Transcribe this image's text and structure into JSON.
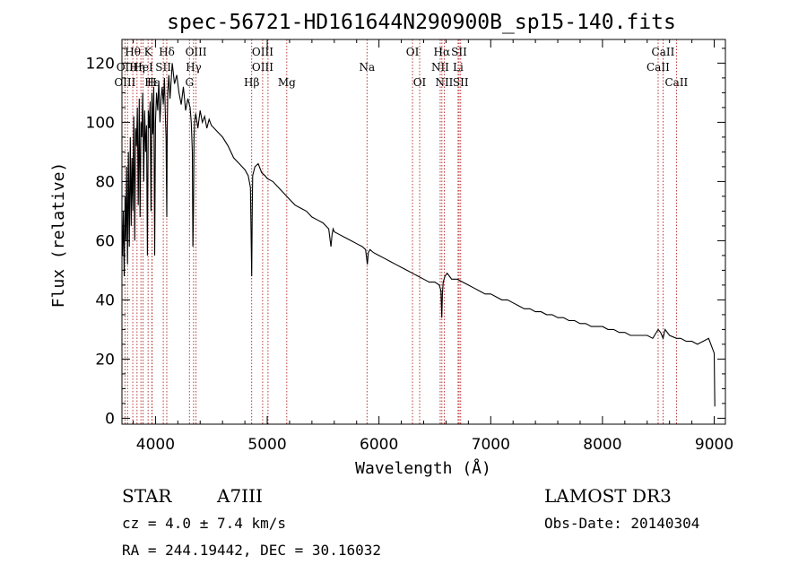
{
  "chart_data": {
    "type": "line",
    "title": "spec-56721-HD161644N290900B_sp15-140.fits",
    "xlabel": "Wavelength (Å)",
    "ylabel": "Flux (relative)",
    "xlim": [
      3700,
      9100
    ],
    "ylim": [
      -2,
      128
    ],
    "xticks": [
      4000,
      5000,
      6000,
      7000,
      8000,
      9000
    ],
    "yticks": [
      0,
      20,
      40,
      60,
      80,
      100,
      120
    ],
    "grid": false,
    "series": [
      {
        "name": "flux",
        "x": [
          3700,
          3705,
          3712,
          3720,
          3728,
          3735,
          3742,
          3750,
          3758,
          3766,
          3775,
          3783,
          3790,
          3798,
          3806,
          3815,
          3822,
          3830,
          3838,
          3846,
          3855,
          3862,
          3870,
          3878,
          3886,
          3895,
          3903,
          3912,
          3920,
          3928,
          3936,
          3945,
          3952,
          3960,
          3968,
          3976,
          3985,
          3993,
          4000,
          4010,
          4020,
          4030,
          4040,
          4050,
          4060,
          4070,
          4080,
          4090,
          4095,
          4101,
          4105,
          4110,
          4120,
          4130,
          4150,
          4170,
          4190,
          4210,
          4230,
          4250,
          4270,
          4290,
          4310,
          4320,
          4330,
          4335,
          4340,
          4345,
          4350,
          4360,
          4380,
          4400,
          4420,
          4440,
          4460,
          4480,
          4500,
          4550,
          4600,
          4650,
          4700,
          4750,
          4800,
          4830,
          4850,
          4855,
          4861,
          4866,
          4870,
          4890,
          4920,
          4950,
          4980,
          5000,
          5050,
          5100,
          5150,
          5200,
          5250,
          5300,
          5350,
          5400,
          5450,
          5500,
          5550,
          5570,
          5580,
          5590,
          5600,
          5650,
          5700,
          5750,
          5800,
          5850,
          5880,
          5890,
          5896,
          5905,
          5920,
          5950,
          6000,
          6050,
          6100,
          6150,
          6200,
          6250,
          6300,
          6350,
          6400,
          6450,
          6500,
          6540,
          6555,
          6562,
          6568,
          6575,
          6590,
          6610,
          6630,
          6650,
          6700,
          6750,
          6800,
          6850,
          6900,
          6950,
          7000,
          7050,
          7100,
          7150,
          7200,
          7250,
          7300,
          7350,
          7400,
          7450,
          7500,
          7550,
          7600,
          7650,
          7700,
          7750,
          7800,
          7850,
          7900,
          7950,
          8000,
          8050,
          8100,
          8150,
          8200,
          8250,
          8300,
          8350,
          8400,
          8450,
          8498,
          8520,
          8542,
          8560,
          8600,
          8662,
          8700,
          8750,
          8800,
          8850,
          8900,
          8950,
          8980,
          9000,
          9005
        ],
        "y": [
          62,
          55,
          70,
          48,
          75,
          60,
          85,
          52,
          90,
          58,
          95,
          65,
          88,
          70,
          102,
          60,
          98,
          92,
          105,
          72,
          108,
          68,
          100,
          95,
          110,
          80,
          104,
          90,
          99,
          55,
          104,
          98,
          107,
          70,
          110,
          96,
          112,
          55,
          100,
          110,
          104,
          114,
          100,
          108,
          112,
          106,
          115,
          100,
          95,
          68,
          98,
          110,
          116,
          108,
          120,
          113,
          116,
          110,
          106,
          112,
          104,
          108,
          105,
          100,
          90,
          58,
          70,
          95,
          100,
          103,
          98,
          104,
          100,
          102,
          98,
          101,
          99,
          97,
          95,
          92,
          88,
          86,
          84,
          82,
          78,
          65,
          48,
          70,
          82,
          85,
          86,
          83,
          82,
          81,
          80,
          78,
          76,
          74,
          72,
          71,
          70,
          68,
          67,
          66,
          64,
          58,
          62,
          64,
          63,
          62,
          61,
          60,
          59,
          58,
          57,
          54,
          52,
          56,
          57,
          56,
          55,
          54,
          53,
          52,
          51,
          50,
          49,
          48,
          47,
          46,
          46,
          45,
          43,
          34,
          42,
          46,
          48,
          49,
          48,
          47,
          47,
          46,
          45,
          44,
          43,
          42,
          42,
          41,
          40,
          40,
          39,
          38,
          37,
          37,
          36,
          36,
          35,
          35,
          34,
          34,
          33,
          33,
          32,
          32,
          31,
          31,
          31,
          30,
          30,
          29,
          29,
          28,
          28,
          28,
          28,
          27,
          30,
          29,
          27,
          30,
          28,
          27,
          27,
          26,
          26,
          25,
          26,
          27,
          24,
          22,
          4
        ]
      }
    ],
    "spectral_lines": [
      {
        "label": "Hθ",
        "x": 3797,
        "row": 1
      },
      {
        "label": "K",
        "x": 3934,
        "row": 1
      },
      {
        "label": "Hδ",
        "x": 4101,
        "row": 1
      },
      {
        "label": "OIII",
        "x": 4363,
        "row": 1
      },
      {
        "label": "OIII",
        "x": 4959,
        "row": 1
      },
      {
        "label": "OI",
        "x": 6300,
        "row": 1
      },
      {
        "label": "Hα",
        "x": 6563,
        "row": 1
      },
      {
        "label": "SII",
        "x": 6717,
        "row": 1
      },
      {
        "label": "CaII",
        "x": 8542,
        "row": 1
      },
      {
        "label": "OII",
        "x": 3727,
        "row": 2
      },
      {
        "label": "Hη",
        "x": 3835,
        "row": 2
      },
      {
        "label": "HeI",
        "x": 3889,
        "row": 2
      },
      {
        "label": "SII",
        "x": 4070,
        "row": 2
      },
      {
        "label": "Hγ",
        "x": 4341,
        "row": 2
      },
      {
        "label": "OIII",
        "x": 4959,
        "row": 2
      },
      {
        "label": "Na",
        "x": 5893,
        "row": 2
      },
      {
        "label": "NII",
        "x": 6548,
        "row": 2
      },
      {
        "label": "Li",
        "x": 6708,
        "row": 2
      },
      {
        "label": "CaII",
        "x": 8498,
        "row": 2
      },
      {
        "label": "OIII",
        "x": 3727,
        "row": 3
      },
      {
        "label": "Hε",
        "x": 3970,
        "row": 3
      },
      {
        "label": "H",
        "x": 3968,
        "row": 3
      },
      {
        "label": "G",
        "x": 4304,
        "row": 3
      },
      {
        "label": "Hβ",
        "x": 4861,
        "row": 3
      },
      {
        "label": "Mg",
        "x": 5175,
        "row": 3
      },
      {
        "label": "OI",
        "x": 6364,
        "row": 3
      },
      {
        "label": "NII",
        "x": 6584,
        "row": 3
      },
      {
        "label": "SII",
        "x": 6731,
        "row": 3
      },
      {
        "label": "CaII",
        "x": 8662,
        "row": 3
      }
    ],
    "line_markers_x": [
      3727,
      3750,
      3797,
      3835,
      3870,
      3889,
      3934,
      3968,
      3970,
      4070,
      4101,
      4304,
      4341,
      4363,
      4861,
      4959,
      5007,
      5175,
      5893,
      6300,
      6364,
      6548,
      6563,
      6584,
      6708,
      6717,
      6731,
      8498,
      8542,
      8662
    ]
  },
  "info": {
    "object_class": "STAR",
    "subclass": "A7III",
    "survey": "LAMOST DR3",
    "cz": "cz = 4.0 ± 7.4 km/s",
    "obs_date": "Obs-Date: 20140304",
    "radec": "RA = 244.19442, DEC =  30.16032"
  }
}
